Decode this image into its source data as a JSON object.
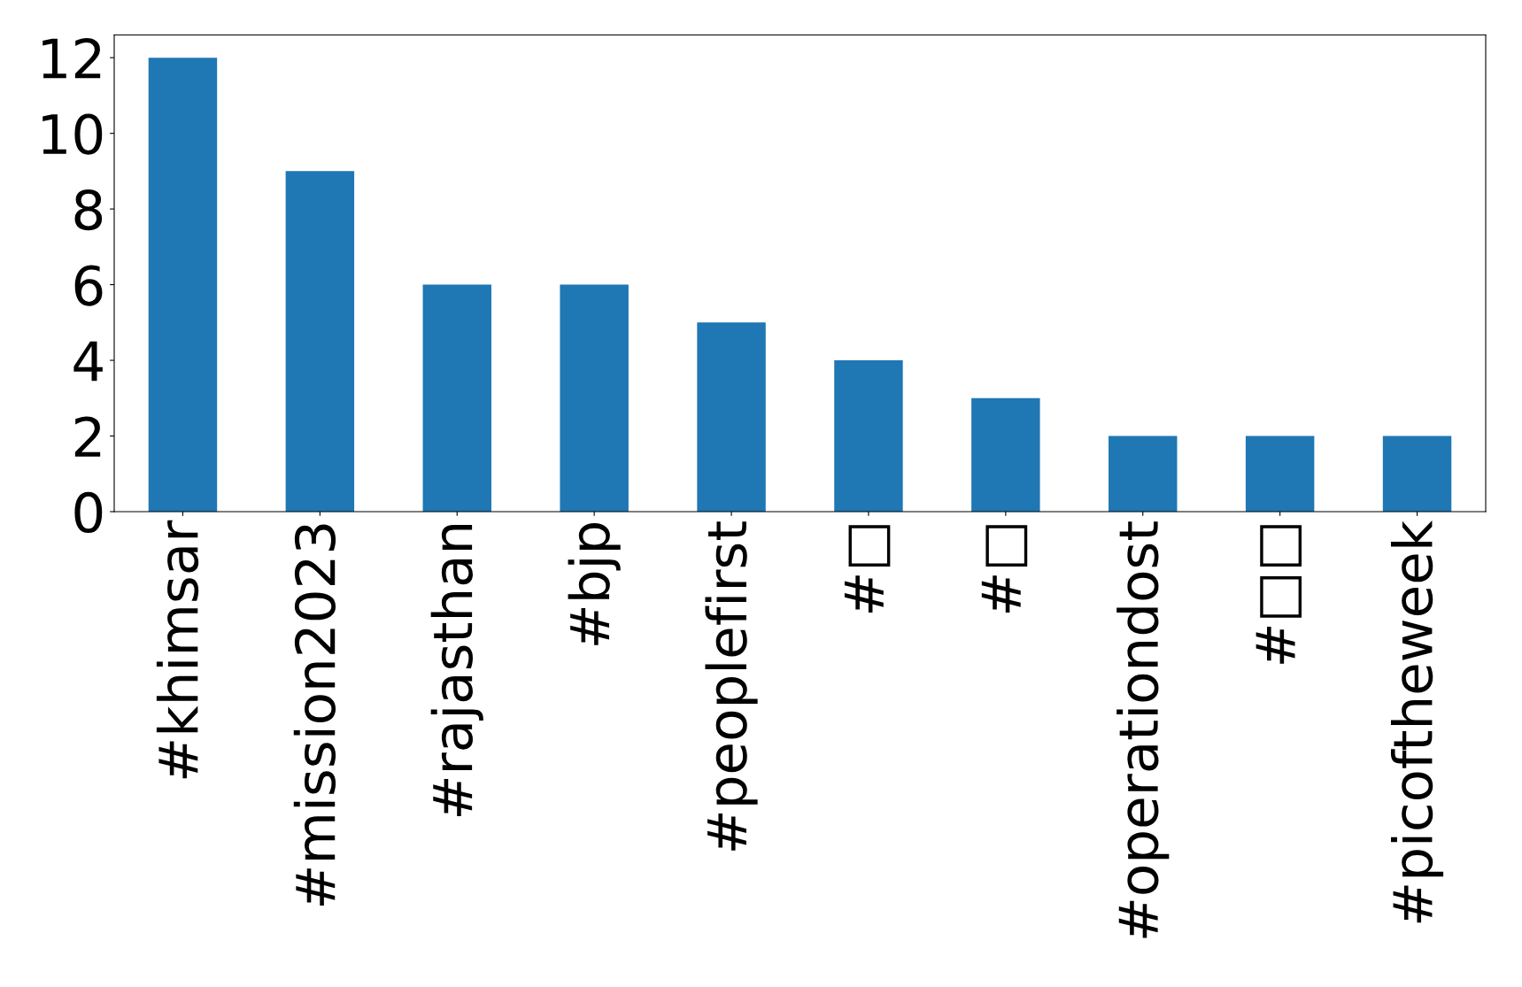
{
  "chart_data": {
    "type": "bar",
    "categories": [
      "#khimsar",
      "#mission2023",
      "#rajasthan",
      "#bjp",
      "#peoplefirst",
      "#□",
      "#□",
      "#operationdost",
      "#□□",
      "#picoftheweek"
    ],
    "values": [
      12,
      9,
      6,
      6,
      5,
      4,
      3,
      2,
      2,
      2
    ],
    "color": "#1f77b4",
    "ylim": [
      0,
      12.6
    ],
    "yticks": [
      0,
      2,
      4,
      6,
      8,
      10,
      12
    ],
    "grid": false
  }
}
